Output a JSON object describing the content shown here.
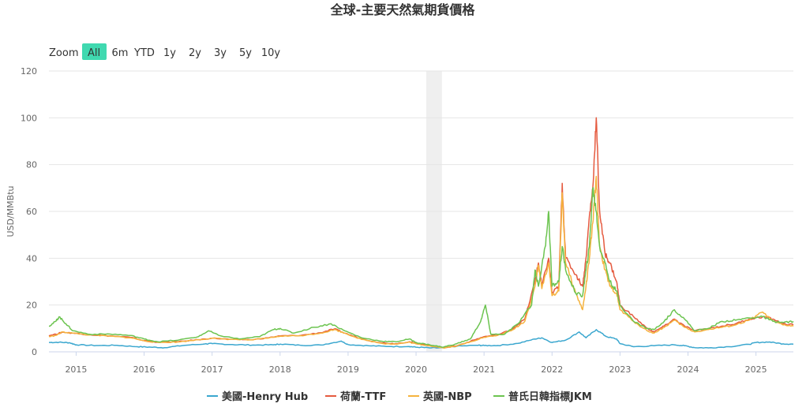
{
  "chart_data": {
    "type": "line",
    "title": "全球-主要天然氣期貨價格",
    "ylabel": "USD/MMBtu",
    "xlabel": "",
    "ylim": [
      0,
      120
    ],
    "y_ticks": [
      0,
      20,
      40,
      60,
      80,
      100,
      120
    ],
    "x_ticks": [
      "2015",
      "2016",
      "2017",
      "2018",
      "2019",
      "2020",
      "2021",
      "2022",
      "2023",
      "2024",
      "2025"
    ],
    "x_range": [
      2014.6,
      2025.55
    ],
    "highlight_band": [
      2020.15,
      2020.38
    ],
    "grid": true,
    "legend_position": "bottom",
    "zoom": {
      "label": "Zoom",
      "options": [
        "All",
        "6m",
        "YTD",
        "1y",
        "2y",
        "3y",
        "5y",
        "10y"
      ],
      "selected": "All"
    },
    "series": [
      {
        "name": "美國-Henry Hub",
        "color": "#3ba7cf",
        "points": [
          [
            2014.6,
            4.0
          ],
          [
            2014.75,
            4.1
          ],
          [
            2014.9,
            3.9
          ],
          [
            2015.0,
            3.0
          ],
          [
            2015.3,
            2.7
          ],
          [
            2015.6,
            2.8
          ],
          [
            2015.9,
            2.2
          ],
          [
            2016.1,
            2.0
          ],
          [
            2016.3,
            1.8
          ],
          [
            2016.6,
            2.8
          ],
          [
            2016.9,
            3.4
          ],
          [
            2017.0,
            3.5
          ],
          [
            2017.3,
            3.1
          ],
          [
            2017.6,
            2.9
          ],
          [
            2017.9,
            3.0
          ],
          [
            2018.0,
            3.3
          ],
          [
            2018.3,
            2.8
          ],
          [
            2018.6,
            2.9
          ],
          [
            2018.9,
            4.6
          ],
          [
            2019.0,
            3.1
          ],
          [
            2019.3,
            2.6
          ],
          [
            2019.6,
            2.3
          ],
          [
            2019.9,
            2.3
          ],
          [
            2020.0,
            2.0
          ],
          [
            2020.2,
            1.7
          ],
          [
            2020.4,
            1.7
          ],
          [
            2020.6,
            2.4
          ],
          [
            2020.9,
            2.8
          ],
          [
            2021.0,
            2.7
          ],
          [
            2021.2,
            2.7
          ],
          [
            2021.5,
            3.6
          ],
          [
            2021.75,
            5.5
          ],
          [
            2021.85,
            6.0
          ],
          [
            2022.0,
            4.0
          ],
          [
            2022.2,
            5.0
          ],
          [
            2022.4,
            8.5
          ],
          [
            2022.5,
            6.0
          ],
          [
            2022.65,
            9.5
          ],
          [
            2022.8,
            6.5
          ],
          [
            2022.95,
            5.5
          ],
          [
            2023.0,
            3.5
          ],
          [
            2023.2,
            2.2
          ],
          [
            2023.5,
            2.6
          ],
          [
            2023.8,
            3.0
          ],
          [
            2023.95,
            2.6
          ],
          [
            2024.1,
            1.8
          ],
          [
            2024.3,
            1.7
          ],
          [
            2024.6,
            2.2
          ],
          [
            2024.9,
            3.2
          ],
          [
            2025.0,
            4.0
          ],
          [
            2025.2,
            4.2
          ],
          [
            2025.4,
            3.4
          ],
          [
            2025.55,
            3.3
          ]
        ]
      },
      {
        "name": "荷蘭-TTF",
        "color": "#e55a3f",
        "points": [
          [
            2014.6,
            7.0
          ],
          [
            2014.7,
            7.5
          ],
          [
            2014.8,
            8.4
          ],
          [
            2014.95,
            8.0
          ],
          [
            2015.2,
            7.3
          ],
          [
            2015.5,
            6.8
          ],
          [
            2015.8,
            6.2
          ],
          [
            2016.0,
            4.8
          ],
          [
            2016.2,
            4.1
          ],
          [
            2016.5,
            4.3
          ],
          [
            2016.8,
            5.2
          ],
          [
            2017.0,
            5.8
          ],
          [
            2017.3,
            5.3
          ],
          [
            2017.6,
            5.2
          ],
          [
            2017.9,
            6.3
          ],
          [
            2018.0,
            6.8
          ],
          [
            2018.3,
            7.0
          ],
          [
            2018.6,
            8.2
          ],
          [
            2018.8,
            9.8
          ],
          [
            2018.95,
            8.0
          ],
          [
            2019.2,
            5.5
          ],
          [
            2019.5,
            3.8
          ],
          [
            2019.7,
            3.5
          ],
          [
            2019.9,
            4.3
          ],
          [
            2020.0,
            3.6
          ],
          [
            2020.2,
            2.8
          ],
          [
            2020.4,
            1.8
          ],
          [
            2020.6,
            2.6
          ],
          [
            2020.8,
            4.5
          ],
          [
            2021.0,
            6.5
          ],
          [
            2021.2,
            7.2
          ],
          [
            2021.4,
            9.5
          ],
          [
            2021.6,
            14.0
          ],
          [
            2021.75,
            30.0
          ],
          [
            2021.8,
            38.0
          ],
          [
            2021.85,
            28.0
          ],
          [
            2021.95,
            40.0
          ],
          [
            2022.0,
            25.0
          ],
          [
            2022.1,
            28.0
          ],
          [
            2022.15,
            72.0
          ],
          [
            2022.2,
            40.0
          ],
          [
            2022.35,
            33.0
          ],
          [
            2022.45,
            28.0
          ],
          [
            2022.5,
            40.0
          ],
          [
            2022.55,
            58.0
          ],
          [
            2022.6,
            70.0
          ],
          [
            2022.65,
            100.0
          ],
          [
            2022.7,
            60.0
          ],
          [
            2022.78,
            42.0
          ],
          [
            2022.85,
            38.0
          ],
          [
            2022.95,
            30.0
          ],
          [
            2023.0,
            20.0
          ],
          [
            2023.2,
            15.0
          ],
          [
            2023.4,
            10.0
          ],
          [
            2023.5,
            8.5
          ],
          [
            2023.65,
            11.0
          ],
          [
            2023.8,
            14.0
          ],
          [
            2023.95,
            11.0
          ],
          [
            2024.1,
            9.0
          ],
          [
            2024.3,
            10.0
          ],
          [
            2024.5,
            11.0
          ],
          [
            2024.7,
            12.0
          ],
          [
            2024.9,
            14.0
          ],
          [
            2025.1,
            15.0
          ],
          [
            2025.25,
            14.0
          ],
          [
            2025.4,
            12.0
          ],
          [
            2025.55,
            11.5
          ]
        ]
      },
      {
        "name": "英國-NBP",
        "color": "#f5b33e",
        "points": [
          [
            2014.6,
            6.5
          ],
          [
            2014.7,
            7.0
          ],
          [
            2014.8,
            8.5
          ],
          [
            2014.95,
            8.0
          ],
          [
            2015.2,
            7.2
          ],
          [
            2015.5,
            6.7
          ],
          [
            2015.8,
            6.0
          ],
          [
            2016.0,
            4.7
          ],
          [
            2016.2,
            4.0
          ],
          [
            2016.5,
            4.2
          ],
          [
            2016.8,
            5.2
          ],
          [
            2017.0,
            5.8
          ],
          [
            2017.3,
            5.3
          ],
          [
            2017.6,
            5.1
          ],
          [
            2017.9,
            6.2
          ],
          [
            2018.0,
            6.7
          ],
          [
            2018.3,
            6.9
          ],
          [
            2018.6,
            8.0
          ],
          [
            2018.8,
            9.5
          ],
          [
            2018.95,
            8.0
          ],
          [
            2019.2,
            5.3
          ],
          [
            2019.5,
            3.6
          ],
          [
            2019.7,
            3.3
          ],
          [
            2019.9,
            4.1
          ],
          [
            2020.0,
            3.4
          ],
          [
            2020.2,
            2.6
          ],
          [
            2020.4,
            1.7
          ],
          [
            2020.6,
            2.5
          ],
          [
            2020.8,
            4.3
          ],
          [
            2021.0,
            6.2
          ],
          [
            2021.2,
            7.0
          ],
          [
            2021.4,
            9.0
          ],
          [
            2021.6,
            13.0
          ],
          [
            2021.75,
            28.0
          ],
          [
            2021.8,
            37.0
          ],
          [
            2021.85,
            27.0
          ],
          [
            2021.95,
            38.0
          ],
          [
            2022.0,
            24.0
          ],
          [
            2022.1,
            26.0
          ],
          [
            2022.15,
            68.0
          ],
          [
            2022.2,
            38.0
          ],
          [
            2022.35,
            25.0
          ],
          [
            2022.45,
            18.0
          ],
          [
            2022.5,
            28.0
          ],
          [
            2022.55,
            40.0
          ],
          [
            2022.6,
            55.0
          ],
          [
            2022.65,
            75.0
          ],
          [
            2022.7,
            45.0
          ],
          [
            2022.78,
            35.0
          ],
          [
            2022.85,
            28.0
          ],
          [
            2022.95,
            25.0
          ],
          [
            2023.0,
            18.0
          ],
          [
            2023.2,
            13.0
          ],
          [
            2023.4,
            9.0
          ],
          [
            2023.5,
            8.0
          ],
          [
            2023.65,
            10.5
          ],
          [
            2023.8,
            13.5
          ],
          [
            2023.95,
            10.5
          ],
          [
            2024.1,
            8.5
          ],
          [
            2024.3,
            9.5
          ],
          [
            2024.5,
            10.5
          ],
          [
            2024.7,
            11.5
          ],
          [
            2024.9,
            13.5
          ],
          [
            2025.1,
            17.0
          ],
          [
            2025.25,
            13.0
          ],
          [
            2025.4,
            11.5
          ],
          [
            2025.55,
            11.0
          ]
        ]
      },
      {
        "name": "普氏日韓指標JKM",
        "color": "#6cc450",
        "points": [
          [
            2014.6,
            11.0
          ],
          [
            2014.7,
            13.0
          ],
          [
            2014.75,
            15.0
          ],
          [
            2014.85,
            12.0
          ],
          [
            2014.95,
            9.0
          ],
          [
            2015.2,
            7.5
          ],
          [
            2015.5,
            7.6
          ],
          [
            2015.8,
            7.0
          ],
          [
            2016.0,
            5.5
          ],
          [
            2016.2,
            4.3
          ],
          [
            2016.5,
            5.0
          ],
          [
            2016.8,
            6.5
          ],
          [
            2016.95,
            9.0
          ],
          [
            2017.1,
            7.0
          ],
          [
            2017.4,
            5.5
          ],
          [
            2017.7,
            6.5
          ],
          [
            2017.9,
            9.5
          ],
          [
            2018.0,
            10.0
          ],
          [
            2018.2,
            8.0
          ],
          [
            2018.5,
            10.5
          ],
          [
            2018.75,
            12.0
          ],
          [
            2018.95,
            9.0
          ],
          [
            2019.2,
            6.0
          ],
          [
            2019.5,
            4.5
          ],
          [
            2019.7,
            4.3
          ],
          [
            2019.9,
            5.5
          ],
          [
            2020.0,
            4.0
          ],
          [
            2020.2,
            3.0
          ],
          [
            2020.4,
            2.0
          ],
          [
            2020.6,
            3.5
          ],
          [
            2020.8,
            5.5
          ],
          [
            2020.95,
            13.0
          ],
          [
            2021.02,
            20.0
          ],
          [
            2021.1,
            7.5
          ],
          [
            2021.3,
            7.5
          ],
          [
            2021.5,
            12.0
          ],
          [
            2021.7,
            20.0
          ],
          [
            2021.75,
            35.0
          ],
          [
            2021.8,
            28.0
          ],
          [
            2021.9,
            45.0
          ],
          [
            2021.95,
            60.0
          ],
          [
            2022.0,
            28.0
          ],
          [
            2022.1,
            30.0
          ],
          [
            2022.15,
            45.0
          ],
          [
            2022.2,
            35.0
          ],
          [
            2022.35,
            25.0
          ],
          [
            2022.45,
            24.0
          ],
          [
            2022.5,
            35.0
          ],
          [
            2022.55,
            45.0
          ],
          [
            2022.6,
            70.0
          ],
          [
            2022.65,
            60.0
          ],
          [
            2022.7,
            45.0
          ],
          [
            2022.78,
            38.0
          ],
          [
            2022.85,
            30.0
          ],
          [
            2022.95,
            26.0
          ],
          [
            2023.0,
            20.0
          ],
          [
            2023.2,
            13.0
          ],
          [
            2023.4,
            10.0
          ],
          [
            2023.5,
            9.5
          ],
          [
            2023.65,
            13.0
          ],
          [
            2023.8,
            18.0
          ],
          [
            2023.95,
            14.0
          ],
          [
            2024.1,
            9.0
          ],
          [
            2024.3,
            10.0
          ],
          [
            2024.5,
            13.0
          ],
          [
            2024.7,
            13.5
          ],
          [
            2024.9,
            14.5
          ],
          [
            2025.1,
            15.0
          ],
          [
            2025.25,
            13.0
          ],
          [
            2025.4,
            12.5
          ],
          [
            2025.55,
            13.0
          ]
        ]
      }
    ]
  }
}
